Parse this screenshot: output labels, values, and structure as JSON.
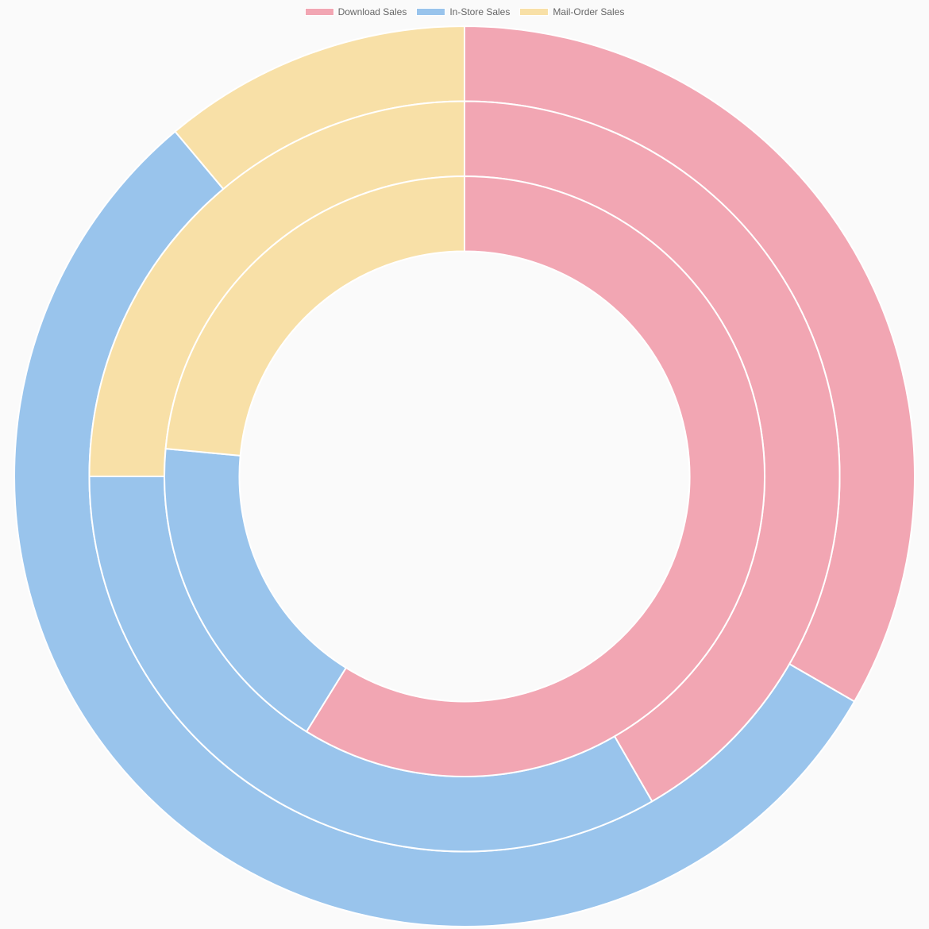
{
  "chart_data": {
    "type": "doughnut",
    "title": "",
    "legend_position": "top",
    "labels": [
      "Download Sales",
      "In-Store Sales",
      "Mail-Order Sales"
    ],
    "colors": [
      "#f2a6b3",
      "#99c4ec",
      "#f8e0a7"
    ],
    "border_color": "#ffffff",
    "datasets": [
      {
        "name": "",
        "values": [
          300,
          500,
          100
        ]
      },
      {
        "name": "",
        "values": [
          50,
          40,
          30
        ]
      },
      {
        "name": "",
        "values": [
          50,
          15,
          20
        ]
      }
    ]
  },
  "legend": [
    {
      "label": "Download Sales",
      "color": "#f2a6b3"
    },
    {
      "label": "In-Store Sales",
      "color": "#99c4ec"
    },
    {
      "label": "Mail-Order Sales",
      "color": "#f8e0a7"
    }
  ]
}
